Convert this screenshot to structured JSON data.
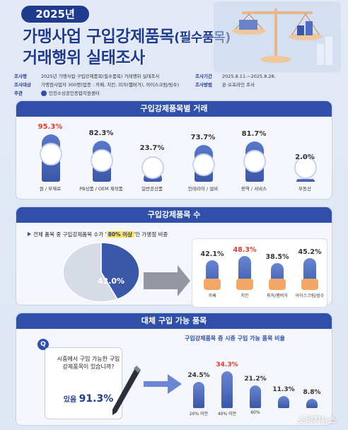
{
  "header": {
    "year": "2025년",
    "title_line1_main": "가맹사업 구입강제품목",
    "title_line1_paren": "(필수품목)",
    "title_line2": "거래행위 실태조사"
  },
  "info": {
    "survey_name_key": "조사명",
    "survey_name": "2025년 가맹사업 구입강제품목(필수품목) 거래행위 실태조사",
    "target_key": "조사대상",
    "target": "가맹점사업자 300명(업종 : 카페, 치킨, 피자(햄버거), 아이스크림/빙수)",
    "host_key": "주관",
    "host": "인천소상공인종합지원센터",
    "period_key": "조사기간",
    "period": "2025.8.11.~2025.8.28.",
    "method_key": "조사방법",
    "method": "온·오프라인 조사"
  },
  "sections": {
    "s1_title": "구입강제품목별 거래",
    "s2_title": "구입강제품목 수",
    "s3_title": "대체 구입 가능 품목"
  },
  "s2_text": {
    "note_pre": "전체 품목 중 구입강제품목 수가 '",
    "note_em": "80% 이상",
    "note_post": "'인 가맹점 비중",
    "pie_label": "43.0%"
  },
  "s3_text": {
    "question": "시중에서 구입 가능한 구입강제품목이 있습니까?",
    "answer_pre": "있음 ",
    "answer_num": "91.3%",
    "q_mark": "Q",
    "subtitle": "구입강제품목 중 시중 구입 가능 품목 비율"
  },
  "watermark": "소비자뉴스",
  "colors": {
    "primary": "#2f4fa8",
    "navy": "#1f3b8c",
    "highlight_red": "#e2382c",
    "highlight_yellow": "#fde34f"
  },
  "chart_data": [
    {
      "type": "bar",
      "title": "구입강제품목별 거래",
      "categories": [
        "원 / 부재료",
        "PB상품 / OEM 제작품",
        "일반공산품",
        "인테리어 / 설비",
        "용역 / 서비스",
        "부동산"
      ],
      "values": [
        95.3,
        82.3,
        23.7,
        73.7,
        81.7,
        2.0
      ],
      "labels": [
        "95.3%",
        "82.3%",
        "23.7%",
        "73.7%",
        "81.7%",
        "2.0%"
      ],
      "icons": [
        "coffee-beans-icon",
        "box-tag-icon",
        "cup-icon",
        "paint-brush-icon",
        "stars-hand-icon",
        "house-icon"
      ]
    },
    {
      "type": "pie",
      "title": "구입강제품목 수",
      "slices": [
        {
          "value": 43.0
        },
        {
          "value": 57.0
        }
      ]
    },
    {
      "type": "bar",
      "categories": [
        "카페",
        "치킨",
        "피자/햄버거",
        "아이스크림/빙수"
      ],
      "values": [
        42.1,
        48.3,
        38.5,
        45.2
      ],
      "labels": [
        "42.1%",
        "48.3%",
        "38.5%",
        "45.2%"
      ],
      "icons": [
        "coffee-cup-icon",
        "chicken-icon",
        "burger-icon",
        "icecream-icon"
      ]
    },
    {
      "type": "bar",
      "title": "구입강제품목 중 시중 구입 가능 품목 비율",
      "categories": [
        "20% 미만",
        "40% 미만",
        "60%",
        "",
        ""
      ],
      "values": [
        24.5,
        34.3,
        21.2,
        11.3,
        8.8
      ],
      "labels": [
        "24.5%",
        "34.3%",
        "21.2%",
        "11.3%",
        "8.8%"
      ]
    }
  ]
}
